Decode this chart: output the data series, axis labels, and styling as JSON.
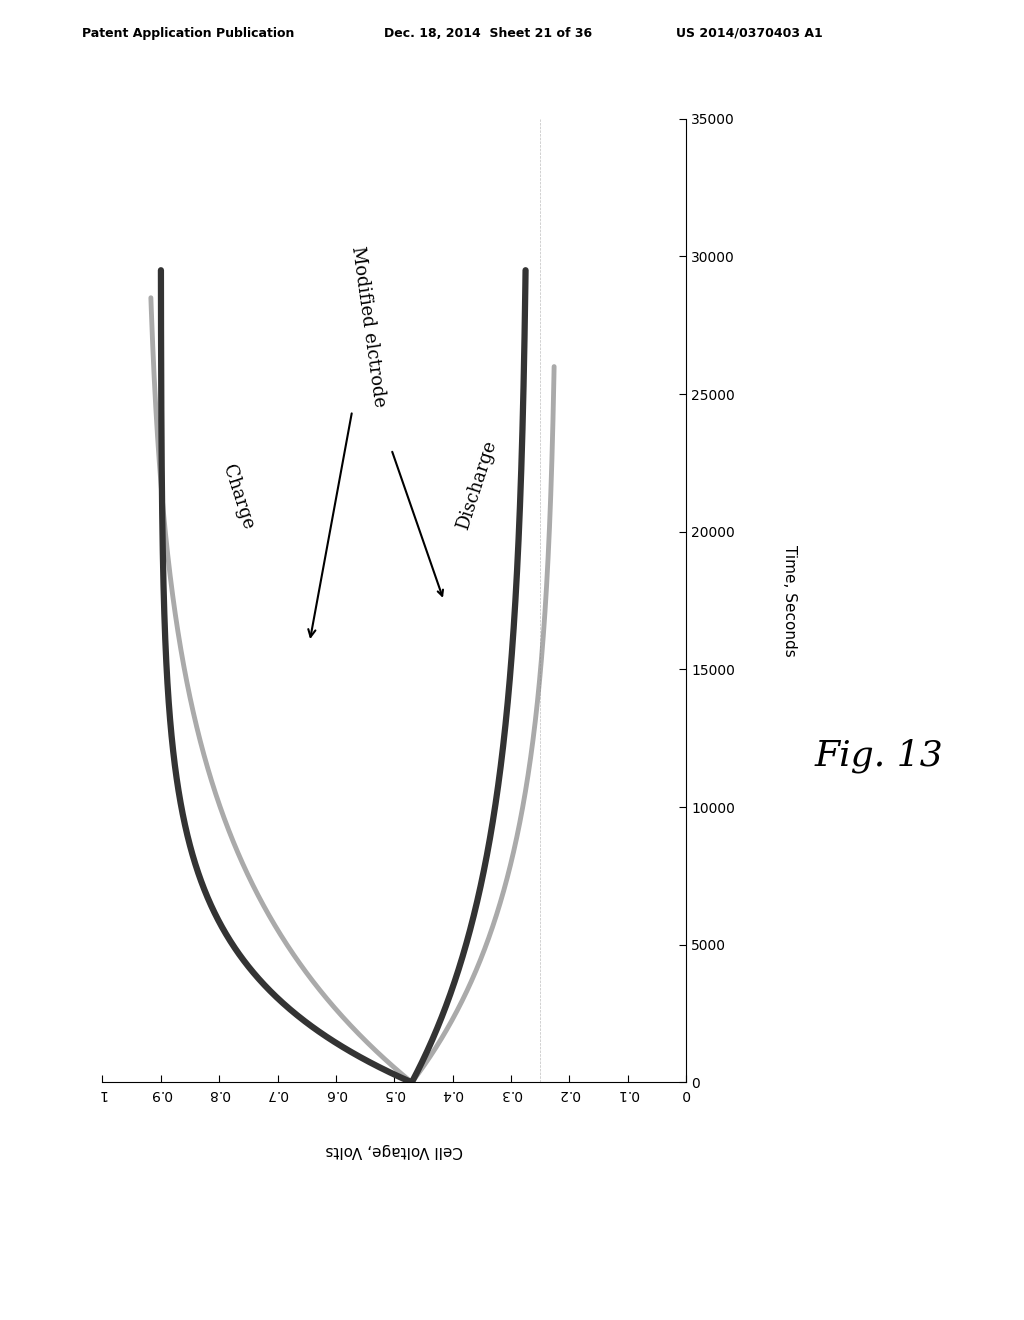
{
  "header_left": "Patent Application Publication",
  "header_mid": "Dec. 18, 2014  Sheet 21 of 36",
  "header_right": "US 2014/0370403 A1",
  "fig_label": "Fig. 13",
  "xlabel": "Cell Voltage, Volts",
  "ylabel": "Time, Seconds",
  "x_ticks": [
    1.0,
    0.9,
    0.8,
    0.7,
    0.6,
    0.5,
    0.4,
    0.3,
    0.2,
    0.1,
    0.0
  ],
  "x_tick_labels": [
    "1",
    "0.9",
    "0.8",
    "0.7",
    "0.6",
    "0.5",
    "0.4",
    "0.3",
    "0.2",
    "0.1",
    "0"
  ],
  "y_ticks": [
    0,
    5000,
    10000,
    15000,
    20000,
    25000,
    30000,
    35000
  ],
  "y_tick_labels": [
    "0",
    "5000",
    "10000",
    "15000",
    "20000",
    "25000",
    "30000",
    "35000"
  ],
  "gray_color": "#aaaaaa",
  "dark_color": "#333333",
  "bg_color": "#ffffff",
  "lw_gray": 3.5,
  "lw_dark": 4.5,
  "header_fontsize": 9,
  "axis_fontsize": 11,
  "annotation_fontsize": 13,
  "fig_label_fontsize": 26,
  "charge_label": "Charge",
  "discharge_label": "Discharge",
  "modified_label": "Modified elctrode"
}
